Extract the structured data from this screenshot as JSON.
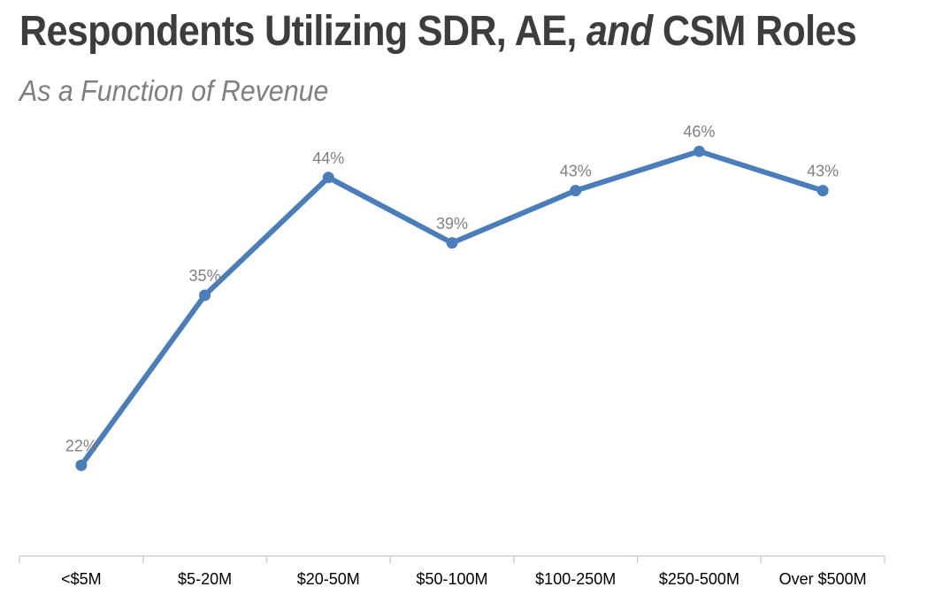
{
  "title": {
    "part1": "Respondents Utilizing SDR, AE, ",
    "part_italic": "and",
    "part2": " CSM Roles"
  },
  "subtitle": "As a Function of Revenue",
  "chart_data": {
    "type": "line",
    "title": "Respondents Utilizing SDR, AE, and CSM Roles",
    "subtitle": "As a Function of Revenue",
    "categories": [
      "<$5M",
      "$5-20M",
      "$20-50M",
      "$50-100M",
      "$100-250M",
      "$250-500M",
      "Over $500M"
    ],
    "series": [
      {
        "values": [
          22,
          35,
          44,
          39,
          43,
          46,
          43
        ],
        "labels": [
          "22%",
          "35%",
          "44%",
          "39%",
          "43%",
          "46%",
          "43%"
        ],
        "color": "#4a7ebb"
      }
    ],
    "ylim": [
      0,
      50
    ],
    "grid": false,
    "legend": "none"
  }
}
